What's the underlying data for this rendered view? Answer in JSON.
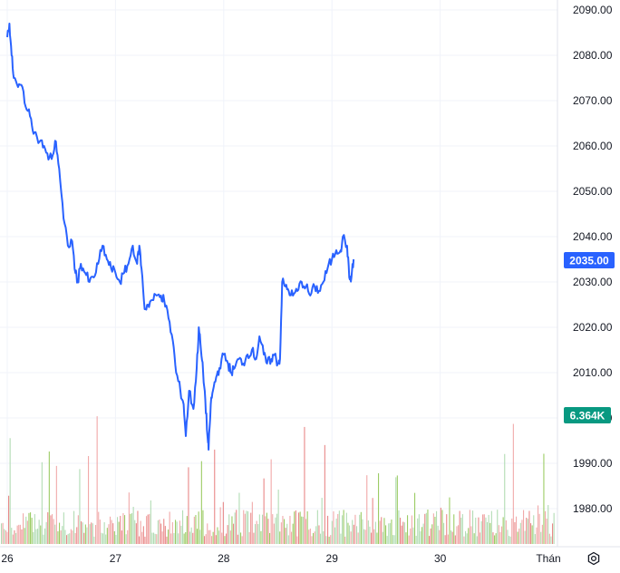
{
  "chart_data": {
    "type": "line",
    "y_axis": {
      "min": 1970,
      "max": 2094,
      "ticks": [
        "2090.00",
        "2080.00",
        "2070.00",
        "2060.00",
        "2050.00",
        "2040.00",
        "2030.00",
        "2020.00",
        "2010.00",
        "2000.00",
        "1990.00",
        "1980.00"
      ],
      "tick_values": [
        2090,
        2080,
        2070,
        2060,
        2050,
        2040,
        2030,
        2020,
        2010,
        2000,
        1990,
        1980
      ]
    },
    "x_axis": {
      "ticks": [
        "26",
        "27",
        "28",
        "29",
        "30",
        "Thán"
      ],
      "tick_positions": [
        0.5,
        1.5,
        2.5,
        3.5,
        4.5,
        5.5
      ],
      "range": [
        0.5,
        5.55
      ]
    },
    "grid": true,
    "price_series": {
      "color": "#2962ff",
      "points": [
        [
          0.5,
          2084
        ],
        [
          0.52,
          2087
        ],
        [
          0.54,
          2080
        ],
        [
          0.56,
          2075
        ],
        [
          0.6,
          2073
        ],
        [
          0.64,
          2073
        ],
        [
          0.68,
          2068
        ],
        [
          0.72,
          2066
        ],
        [
          0.75,
          2063
        ],
        [
          0.8,
          2061
        ],
        [
          0.84,
          2060
        ],
        [
          0.88,
          2057
        ],
        [
          0.92,
          2058
        ],
        [
          0.95,
          2061
        ],
        [
          0.98,
          2055
        ],
        [
          1.02,
          2044
        ],
        [
          1.06,
          2038
        ],
        [
          1.1,
          2039
        ],
        [
          1.13,
          2032
        ],
        [
          1.15,
          2030
        ],
        [
          1.18,
          2034
        ],
        [
          1.22,
          2032
        ],
        [
          1.26,
          2030
        ],
        [
          1.3,
          2031
        ],
        [
          1.34,
          2034
        ],
        [
          1.38,
          2038
        ],
        [
          1.42,
          2035
        ],
        [
          1.46,
          2033
        ],
        [
          1.5,
          2032
        ],
        [
          1.54,
          2030
        ],
        [
          1.58,
          2032
        ],
        [
          1.62,
          2034
        ],
        [
          1.66,
          2038
        ],
        [
          1.7,
          2034
        ],
        [
          1.72,
          2038
        ],
        [
          1.74,
          2033
        ],
        [
          1.77,
          2024
        ],
        [
          1.8,
          2025
        ],
        [
          1.84,
          2026
        ],
        [
          1.88,
          2027
        ],
        [
          1.92,
          2027
        ],
        [
          1.95,
          2026
        ],
        [
          1.99,
          2022
        ],
        [
          2.03,
          2017
        ],
        [
          2.06,
          2010
        ],
        [
          2.1,
          2006
        ],
        [
          2.13,
          2003
        ],
        [
          2.15,
          1996
        ],
        [
          2.18,
          2006
        ],
        [
          2.22,
          2002
        ],
        [
          2.25,
          2011
        ],
        [
          2.27,
          2020
        ],
        [
          2.29,
          2015
        ],
        [
          2.31,
          2010
        ],
        [
          2.33,
          2004
        ],
        [
          2.35,
          1996
        ],
        [
          2.36,
          1993
        ],
        [
          2.38,
          2003
        ],
        [
          2.4,
          2006
        ],
        [
          2.43,
          2009
        ],
        [
          2.46,
          2011
        ],
        [
          2.5,
          2014
        ],
        [
          2.54,
          2012
        ],
        [
          2.57,
          2010
        ],
        [
          2.6,
          2011
        ],
        [
          2.64,
          2013
        ],
        [
          2.68,
          2012
        ],
        [
          2.72,
          2014
        ],
        [
          2.76,
          2015
        ],
        [
          2.8,
          2013
        ],
        [
          2.83,
          2018
        ],
        [
          2.87,
          2014
        ],
        [
          2.9,
          2012
        ],
        [
          2.94,
          2013
        ],
        [
          2.97,
          2014
        ],
        [
          3.0,
          2012
        ],
        [
          3.02,
          2013
        ],
        [
          3.04,
          2030
        ],
        [
          3.07,
          2029
        ],
        [
          3.1,
          2028
        ],
        [
          3.14,
          2027
        ],
        [
          3.18,
          2028
        ],
        [
          3.22,
          2030
        ],
        [
          3.26,
          2029
        ],
        [
          3.3,
          2027
        ],
        [
          3.34,
          2029
        ],
        [
          3.38,
          2028
        ],
        [
          3.42,
          2030
        ],
        [
          3.46,
          2033
        ],
        [
          3.5,
          2035
        ],
        [
          3.54,
          2037
        ],
        [
          3.58,
          2037
        ],
        [
          3.6,
          2040
        ],
        [
          3.64,
          2038
        ],
        [
          3.66,
          2031
        ],
        [
          3.68,
          2031
        ],
        [
          3.7,
          2035
        ]
      ],
      "last_value_label": "2035.00"
    },
    "volume_series": {
      "up_color": "#26a69a",
      "down_color": "#ef5350",
      "last_value_label": "6.364K",
      "label_color": "#089981"
    }
  },
  "ui": {
    "settings_icon": "gear-icon"
  }
}
